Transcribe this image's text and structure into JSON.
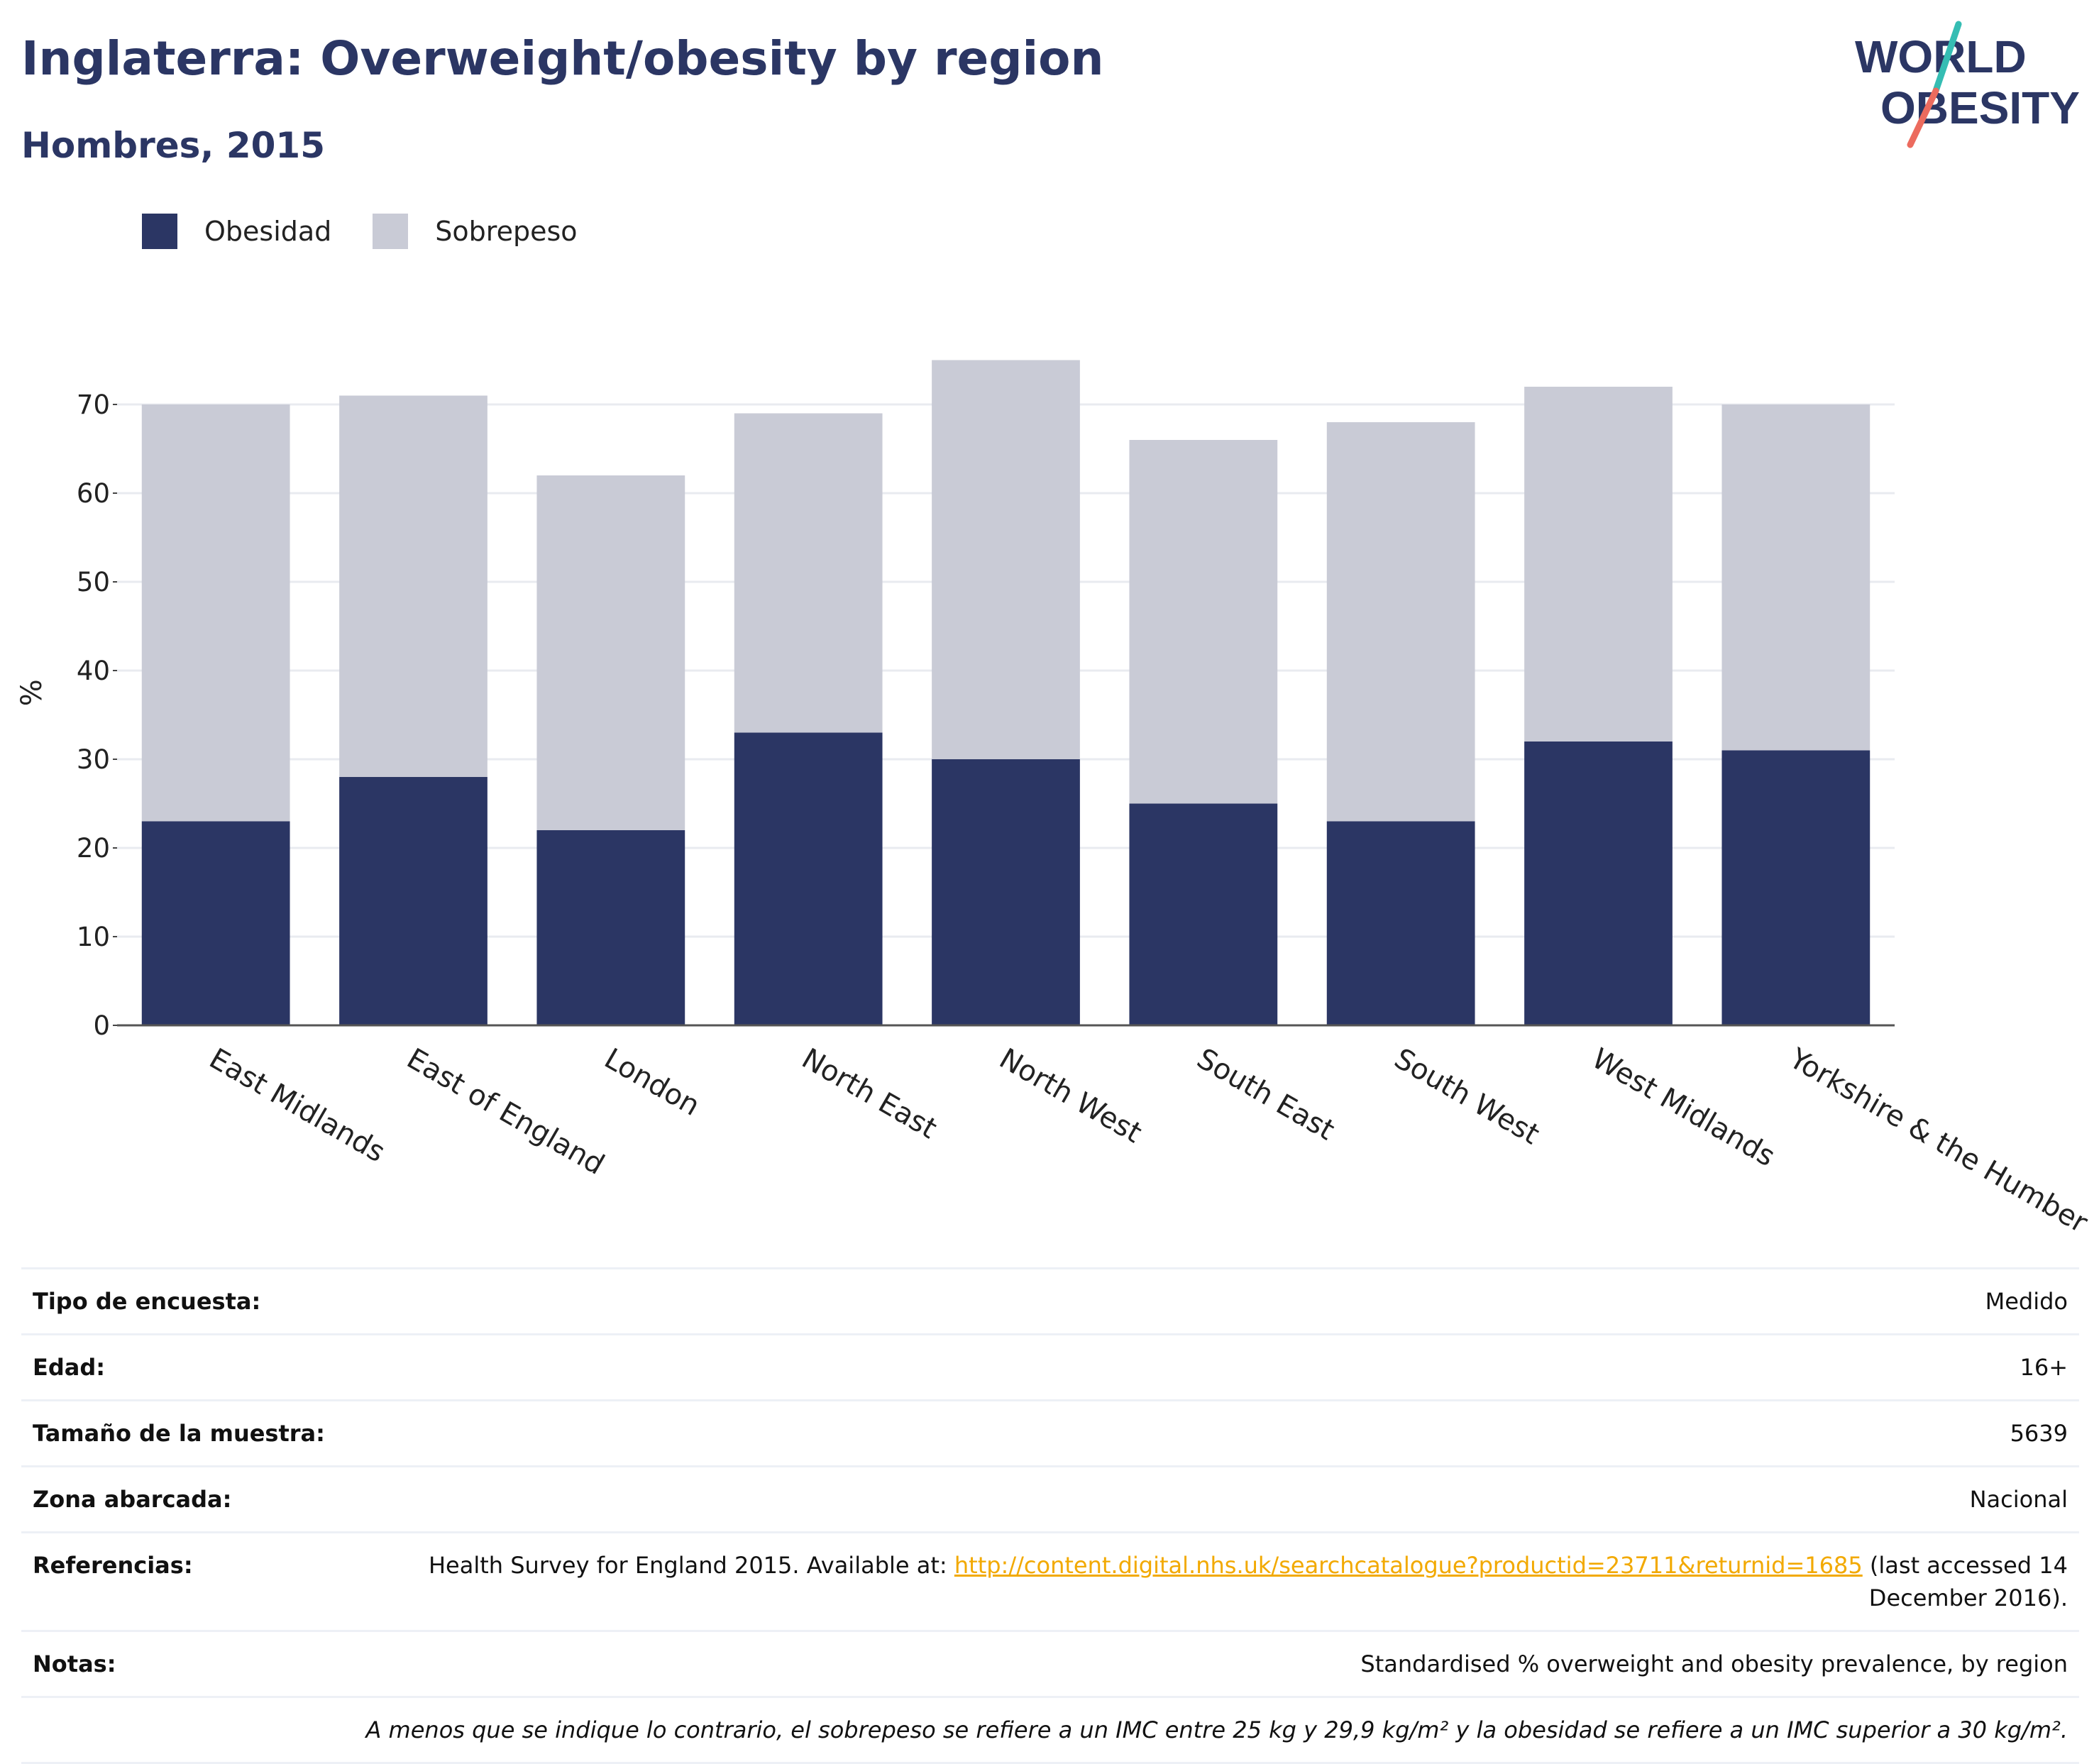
{
  "title": "Inglaterra: Overweight/obesity by region",
  "subtitle": "Hombres, 2015",
  "logo": {
    "line1": "WORLD",
    "line2": "OBESITY"
  },
  "legend": [
    {
      "label": "Obesidad",
      "color": "#2b3664"
    },
    {
      "label": "Sobrepeso",
      "color": "#c9cbd6"
    }
  ],
  "chart_data": {
    "type": "bar",
    "stacked": true,
    "categories": [
      "East Midlands",
      "East of England",
      "London",
      "North East",
      "North West",
      "South East",
      "South West",
      "West Midlands",
      "Yorkshire & the Humber"
    ],
    "series": [
      {
        "name": "Obesidad",
        "color": "#2b3664",
        "values": [
          23,
          28,
          22,
          33,
          30,
          25,
          23,
          32,
          31
        ]
      },
      {
        "name": "Sobrepeso",
        "color": "#c9cbd6",
        "values": [
          47,
          43,
          40,
          36,
          45,
          41,
          45,
          40,
          39
        ]
      }
    ],
    "ylabel": "%",
    "ylim": [
      0,
      75
    ],
    "yticks": [
      0,
      10,
      20,
      30,
      40,
      50,
      60,
      70
    ],
    "grid": true
  },
  "info": {
    "rows": [
      {
        "key": "Tipo de encuesta:",
        "value": "Medido"
      },
      {
        "key": "Edad:",
        "value": "16+"
      },
      {
        "key": "Tamaño de la muestra:",
        "value": "5639"
      },
      {
        "key": "Zona abarcada:",
        "value": "Nacional"
      }
    ],
    "references": {
      "key": "Referencias:",
      "text_before": "Health Survey for England 2015. Available at: ",
      "link": "http://content.digital.nhs.uk/searchcatalogue?productid=23711&returnid=1685",
      "text_after": " (last accessed 14 December 2016)."
    },
    "notes": {
      "key": "Notas:",
      "value": "Standardised % overweight and obesity prevalence, by region"
    },
    "footnote": "A menos que se indique lo contrario, el sobrepeso se refiere a un IMC entre 25 kg y 29,9 kg/m² y la obesidad se refiere a un IMC superior a 30 kg/m²."
  }
}
